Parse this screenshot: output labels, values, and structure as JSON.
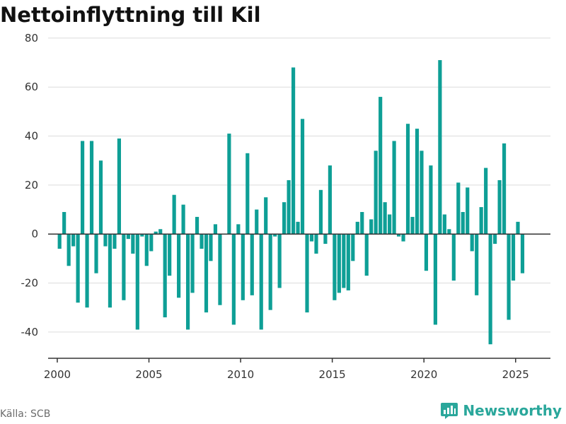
{
  "title": "Nettoinflyttning till Kil",
  "source": "Källa: SCB",
  "brand": {
    "name": "Newsworthy",
    "icon": "bar-chart-logo-icon",
    "color": "#2aa79b"
  },
  "chart_data": {
    "type": "bar",
    "title": "Nettoinflyttning till Kil",
    "bar_color": "#0e9f96",
    "xlim": [
      1999.5,
      2026.9
    ],
    "ylim": [
      -51,
      84
    ],
    "grid": true,
    "legend": "none",
    "y_ticks": [
      "80",
      "60",
      "40",
      "20",
      "0",
      "-20",
      "-40"
    ],
    "x_ticks": [
      "2000",
      "2005",
      "2010",
      "2015",
      "2020",
      "2025"
    ],
    "x": [
      2000.125,
      2000.375,
      2000.625,
      2000.875,
      2001.125,
      2001.375,
      2001.625,
      2001.875,
      2002.125,
      2002.375,
      2002.625,
      2002.875,
      2003.125,
      2003.375,
      2003.625,
      2003.875,
      2004.125,
      2004.375,
      2004.625,
      2004.875,
      2005.125,
      2005.375,
      2005.625,
      2005.875,
      2006.125,
      2006.375,
      2006.625,
      2006.875,
      2007.125,
      2007.375,
      2007.625,
      2007.875,
      2008.125,
      2008.375,
      2008.625,
      2008.875,
      2009.125,
      2009.375,
      2009.625,
      2009.875,
      2010.125,
      2010.375,
      2010.625,
      2010.875,
      2011.125,
      2011.375,
      2011.625,
      2011.875,
      2012.125,
      2012.375,
      2012.625,
      2012.875,
      2013.125,
      2013.375,
      2013.625,
      2013.875,
      2014.125,
      2014.375,
      2014.625,
      2014.875,
      2015.125,
      2015.375,
      2015.625,
      2015.875,
      2016.125,
      2016.375,
      2016.625,
      2016.875,
      2017.125,
      2017.375,
      2017.625,
      2017.875,
      2018.125,
      2018.375,
      2018.625,
      2018.875,
      2019.125,
      2019.375,
      2019.625,
      2019.875,
      2020.125,
      2020.375,
      2020.625,
      2020.875,
      2021.125,
      2021.375,
      2021.625,
      2021.875,
      2022.125,
      2022.375,
      2022.625,
      2022.875,
      2023.125,
      2023.375,
      2023.625,
      2023.875,
      2024.125,
      2024.375,
      2024.625,
      2024.875,
      2025.125,
      2025.375
    ],
    "values": [
      -6,
      9,
      -13,
      -5,
      -28,
      38,
      -30,
      38,
      -16,
      30,
      -5,
      -30,
      -6,
      39,
      -27,
      -2,
      -8,
      -39,
      -1,
      -13,
      -7,
      1,
      2,
      -34,
      -17,
      16,
      -26,
      12,
      -39,
      -24,
      7,
      -6,
      -32,
      -11,
      4,
      -29,
      0,
      41,
      -37,
      4,
      -27,
      33,
      -25,
      10,
      -39,
      15,
      -31,
      -1,
      -22,
      13,
      22,
      68,
      5,
      47,
      -32,
      -3,
      -8,
      18,
      -4,
      28,
      -27,
      -24,
      -22,
      -23,
      -11,
      5,
      9,
      -17,
      6,
      34,
      56,
      13,
      8,
      38,
      -1,
      -3,
      45,
      7,
      43,
      34,
      -15,
      28,
      -37,
      71,
      8,
      2,
      -19,
      21,
      9,
      19,
      -7,
      -25,
      11,
      27,
      -45,
      -4,
      22,
      37,
      -35,
      -19,
      5,
      -16
    ]
  }
}
